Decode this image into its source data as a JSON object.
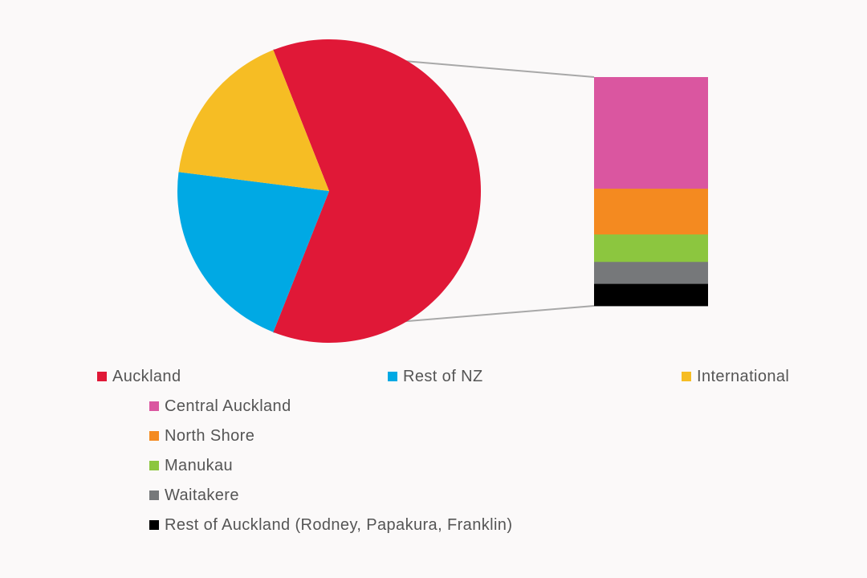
{
  "chart_data": {
    "type": "bar-of-pie",
    "pie": {
      "slices": [
        {
          "name": "Auckland",
          "value": 62,
          "color": "#e01837"
        },
        {
          "name": "Rest of NZ",
          "value": 21,
          "color": "#00a9e4"
        },
        {
          "name": "International",
          "value": 17,
          "color": "#f6bd24"
        }
      ],
      "exploded_slice": "Auckland"
    },
    "bar": {
      "segments": [
        {
          "name": "Central Auckland",
          "value": 30.5,
          "color": "#da56a0"
        },
        {
          "name": "North Shore",
          "value": 12.5,
          "color": "#f48a20"
        },
        {
          "name": "Manukau",
          "value": 7.5,
          "color": "#8cc63f"
        },
        {
          "name": "Waitakere",
          "value": 6,
          "color": "#76787a"
        },
        {
          "name": "Rest of Auckland (Rodney, Papakura, Franklin)",
          "value": 6,
          "color": "#000000"
        }
      ]
    },
    "legend": {
      "primary": [
        "Auckland",
        "Rest of NZ",
        "International"
      ],
      "secondary": [
        "Central Auckland",
        "North Shore",
        "Manukau",
        "Waitakere",
        "Rest of Auckland (Rodney, Papakura, Franklin)"
      ],
      "placement": "bottom"
    },
    "connector_color": "#a8a8a8"
  }
}
